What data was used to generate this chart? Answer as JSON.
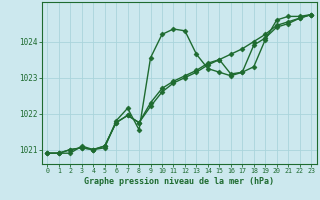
{
  "title": "Graphe pression niveau de la mer (hPa)",
  "xlabel_ticks": [
    0,
    1,
    2,
    3,
    4,
    5,
    6,
    7,
    8,
    9,
    10,
    11,
    12,
    13,
    14,
    15,
    16,
    17,
    18,
    19,
    20,
    21,
    22,
    23
  ],
  "yticks": [
    1021,
    1022,
    1023,
    1024
  ],
  "ylim": [
    1020.6,
    1025.1
  ],
  "xlim": [
    -0.5,
    23.5
  ],
  "bg_color": "#cce8ee",
  "grid_color": "#aad4db",
  "line_color": "#1e6b30",
  "series1_x": [
    0,
    1,
    2,
    3,
    4,
    5,
    6,
    7,
    8,
    9,
    10,
    11,
    12,
    13,
    14,
    15,
    16,
    17,
    18,
    19,
    20,
    21,
    22,
    23
  ],
  "series1_y": [
    1020.9,
    1020.9,
    1020.9,
    1021.1,
    1021.0,
    1021.05,
    1021.8,
    1022.15,
    1021.55,
    1023.55,
    1024.2,
    1024.35,
    1024.3,
    1023.65,
    1023.25,
    1023.15,
    1023.05,
    1023.15,
    1023.3,
    1024.05,
    1024.6,
    1024.7,
    1024.7,
    1024.75
  ],
  "series2_x": [
    0,
    1,
    2,
    3,
    4,
    5,
    6,
    7,
    8,
    9,
    10,
    11,
    12,
    13,
    14,
    15,
    16,
    17,
    18,
    19,
    20,
    21,
    22,
    23
  ],
  "series2_y": [
    1020.9,
    1020.9,
    1021.0,
    1021.05,
    1021.0,
    1021.1,
    1021.75,
    1021.95,
    1021.75,
    1022.2,
    1022.6,
    1022.85,
    1023.0,
    1023.15,
    1023.35,
    1023.5,
    1023.1,
    1023.15,
    1023.9,
    1024.1,
    1024.4,
    1024.5,
    1024.65,
    1024.75
  ],
  "series3_x": [
    0,
    1,
    2,
    3,
    4,
    5,
    6,
    7,
    8,
    9,
    10,
    11,
    12,
    13,
    14,
    15,
    16,
    17,
    18,
    19,
    20,
    21,
    22,
    23
  ],
  "series3_y": [
    1020.9,
    1020.9,
    1021.0,
    1021.05,
    1021.0,
    1021.1,
    1021.75,
    1021.95,
    1021.75,
    1022.3,
    1022.7,
    1022.9,
    1023.05,
    1023.2,
    1023.4,
    1023.5,
    1023.65,
    1023.8,
    1024.0,
    1024.2,
    1024.45,
    1024.55,
    1024.65,
    1024.75
  ],
  "marker": "D",
  "markersize": 2.5,
  "linewidth": 1.0
}
